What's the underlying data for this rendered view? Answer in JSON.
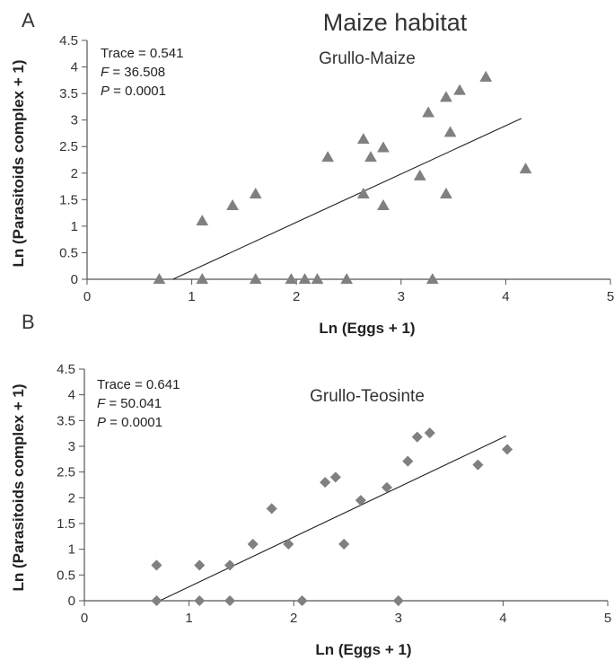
{
  "figure_title": "Maize habitat",
  "chart_data": [
    {
      "panel": "A",
      "type": "scatter",
      "title": "Grullo-Maize",
      "xlabel": "Ln (Eggs + 1)",
      "ylabel": "Ln (Parasitoids complex + 1)",
      "xlim": [
        0,
        5
      ],
      "ylim": [
        0,
        4.5
      ],
      "xticks": [
        "0",
        "1",
        "2",
        "3",
        "4",
        "5"
      ],
      "yticks": [
        "0",
        "0.5",
        "1",
        "1.5",
        "2",
        "2.5",
        "3",
        "3.5",
        "4",
        "4.5"
      ],
      "marker": "triangle",
      "marker_color": "#808080",
      "stats": {
        "trace_label": "Trace = ",
        "trace": "0.541",
        "f_label": "F",
        "f_value": " = 36.508",
        "p_label": "P",
        "p_value": " = 0.0001"
      },
      "points": [
        [
          0.69,
          0
        ],
        [
          1.1,
          0
        ],
        [
          1.61,
          0
        ],
        [
          1.95,
          0
        ],
        [
          2.08,
          0
        ],
        [
          2.2,
          0
        ],
        [
          2.48,
          0
        ],
        [
          3.3,
          0
        ],
        [
          1.1,
          1.1
        ],
        [
          1.39,
          1.39
        ],
        [
          1.61,
          1.61
        ],
        [
          2.3,
          2.3
        ],
        [
          2.64,
          2.64
        ],
        [
          2.64,
          1.61
        ],
        [
          2.71,
          2.3
        ],
        [
          2.83,
          2.48
        ],
        [
          2.83,
          1.39
        ],
        [
          3.18,
          1.95
        ],
        [
          3.26,
          3.14
        ],
        [
          3.43,
          3.43
        ],
        [
          3.43,
          1.61
        ],
        [
          3.47,
          2.77
        ],
        [
          3.56,
          3.56
        ],
        [
          3.81,
          3.81
        ],
        [
          4.19,
          2.08
        ]
      ],
      "trendline": [
        [
          0.82,
          0
        ],
        [
          4.15,
          3.03
        ]
      ]
    },
    {
      "panel": "B",
      "type": "scatter",
      "title": "Grullo-Teosinte",
      "xlabel": "Ln (Eggs + 1)",
      "ylabel": "Ln (Parasitoids complex + 1)",
      "xlim": [
        0,
        5
      ],
      "ylim": [
        0,
        4.5
      ],
      "xticks": [
        "0",
        "1",
        "2",
        "3",
        "4",
        "5"
      ],
      "yticks": [
        "0",
        "0.5",
        "1",
        "1.5",
        "2",
        "2.5",
        "3",
        "3.5",
        "4",
        "4.5"
      ],
      "marker": "diamond",
      "marker_color": "#808080",
      "stats": {
        "trace_label": "Trace = ",
        "trace": " 0.641",
        "f_label": "F",
        "f_value": " = 50.041",
        "p_label": "P",
        "p_value": " = 0.0001"
      },
      "points": [
        [
          0.69,
          0
        ],
        [
          1.1,
          0
        ],
        [
          1.39,
          0
        ],
        [
          2.08,
          0
        ],
        [
          3.0,
          0
        ],
        [
          0.69,
          0.69
        ],
        [
          1.1,
          0.69
        ],
        [
          1.39,
          0.69
        ],
        [
          1.61,
          1.1
        ],
        [
          1.95,
          1.1
        ],
        [
          1.79,
          1.79
        ],
        [
          2.3,
          2.3
        ],
        [
          2.4,
          2.4
        ],
        [
          2.48,
          1.1
        ],
        [
          2.64,
          1.95
        ],
        [
          2.89,
          2.2
        ],
        [
          3.09,
          2.71
        ],
        [
          3.18,
          3.18
        ],
        [
          3.3,
          3.26
        ],
        [
          3.76,
          2.64
        ],
        [
          4.04,
          2.94
        ]
      ],
      "trendline": [
        [
          0.72,
          0
        ],
        [
          4.03,
          3.2
        ]
      ]
    }
  ]
}
